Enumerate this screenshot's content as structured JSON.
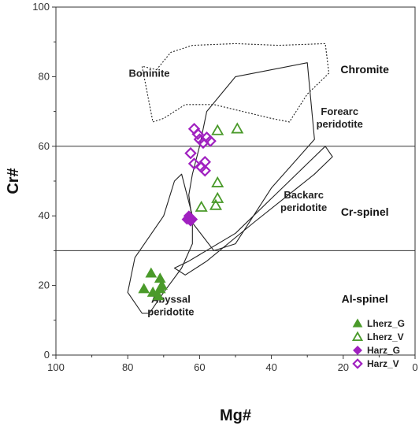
{
  "chart_data": {
    "type": "scatter",
    "xlabel": "Mg#",
    "ylabel": "Cr#",
    "xlim": [
      100,
      0
    ],
    "ylim": [
      0,
      100
    ],
    "x_reversed": true,
    "xticks": [
      100,
      80,
      60,
      40,
      20,
      0
    ],
    "yticks": [
      0,
      20,
      40,
      60,
      80,
      100
    ],
    "grid": false,
    "legend_position": "bottom-right",
    "colors": {
      "green": "#4a9a2a",
      "purple": "#a020c0"
    },
    "boundaries": [
      30,
      60
    ],
    "zones": [
      {
        "label": "Chromite",
        "x": 14,
        "y": 81
      },
      {
        "label": "Cr-spinel",
        "x": 14,
        "y": 40
      },
      {
        "label": "Al-spinel",
        "x": 14,
        "y": 15
      }
    ],
    "fields": [
      {
        "label": "Boninite",
        "lines": [
          "Boninite"
        ],
        "label_at": [
          74,
          80
        ],
        "style": "dotted",
        "outline": [
          [
            72,
            82
          ],
          [
            68,
            87
          ],
          [
            62,
            89
          ],
          [
            50,
            89.5
          ],
          [
            38,
            89
          ],
          [
            25,
            89.5
          ],
          [
            24,
            81
          ],
          [
            30,
            75
          ],
          [
            35,
            67
          ],
          [
            40,
            68
          ],
          [
            48,
            70
          ],
          [
            56,
            72
          ],
          [
            64,
            72
          ],
          [
            70,
            68
          ],
          [
            73,
            67
          ],
          [
            76,
            83
          ],
          [
            72,
            82
          ]
        ]
      },
      {
        "label": "Forearc peridotite",
        "lines": [
          "Forearc",
          "peridotite"
        ],
        "label_at": [
          21,
          69
        ],
        "style": "solid",
        "outline": [
          [
            62,
            52
          ],
          [
            60,
            60
          ],
          [
            58,
            70
          ],
          [
            50,
            80
          ],
          [
            30,
            84
          ],
          [
            28,
            62
          ],
          [
            40,
            48
          ],
          [
            50,
            32
          ],
          [
            56,
            30
          ],
          [
            62,
            38
          ],
          [
            63,
            46
          ],
          [
            62,
            52
          ]
        ]
      },
      {
        "label": "Backarc peridotite",
        "lines": [
          "Backarc",
          "peridotite"
        ],
        "label_at": [
          31,
          45
        ],
        "style": "solid",
        "outline": [
          [
            63,
            27
          ],
          [
            50,
            35
          ],
          [
            40,
            45
          ],
          [
            30,
            55
          ],
          [
            25,
            60
          ],
          [
            23,
            57
          ],
          [
            28,
            52
          ],
          [
            45,
            38
          ],
          [
            58,
            27
          ],
          [
            64,
            23
          ],
          [
            67,
            25
          ],
          [
            63,
            27
          ]
        ]
      },
      {
        "label": "Abyssal peridotite",
        "lines": [
          "Abyssal",
          "peridotite"
        ],
        "label_at": [
          68,
          15
        ],
        "style": "solid",
        "outline": [
          [
            76,
            12
          ],
          [
            80,
            18
          ],
          [
            78,
            28
          ],
          [
            70,
            40
          ],
          [
            67,
            50
          ],
          [
            65,
            52
          ],
          [
            62,
            40
          ],
          [
            62,
            32
          ],
          [
            65,
            25
          ],
          [
            70,
            18
          ],
          [
            74,
            12
          ],
          [
            76,
            12
          ]
        ]
      }
    ],
    "series": [
      {
        "name": "Lherz_G",
        "marker": "triangle",
        "filled": true,
        "color": "#4a9a2a",
        "points": [
          [
            75.5,
            19
          ],
          [
            73.5,
            23.5
          ],
          [
            73,
            18
          ],
          [
            71.5,
            17
          ],
          [
            71,
            22
          ],
          [
            71,
            19
          ],
          [
            70.5,
            20
          ]
        ]
      },
      {
        "name": "Lherz_V",
        "marker": "triangle",
        "filled": false,
        "color": "#4a9a2a",
        "points": [
          [
            55,
            64.5
          ],
          [
            49.5,
            65
          ],
          [
            55,
            49.5
          ],
          [
            55,
            45
          ],
          [
            55.5,
            43
          ],
          [
            59.5,
            42.5
          ]
        ]
      },
      {
        "name": "Harz_G",
        "marker": "diamond",
        "filled": true,
        "color": "#a020c0",
        "points": [
          [
            63.5,
            39
          ],
          [
            63,
            40
          ],
          [
            62.5,
            38.5
          ],
          [
            62,
            39
          ]
        ]
      },
      {
        "name": "Harz_V",
        "marker": "diamond",
        "filled": false,
        "color": "#a020c0",
        "points": [
          [
            61.5,
            65
          ],
          [
            60.5,
            63.5
          ],
          [
            60,
            62
          ],
          [
            59,
            61
          ],
          [
            58,
            62.5
          ],
          [
            57,
            61.5
          ],
          [
            62.5,
            58
          ],
          [
            61.5,
            55
          ],
          [
            59.5,
            54
          ],
          [
            58.5,
            55.5
          ],
          [
            58.5,
            53
          ]
        ]
      }
    ]
  }
}
